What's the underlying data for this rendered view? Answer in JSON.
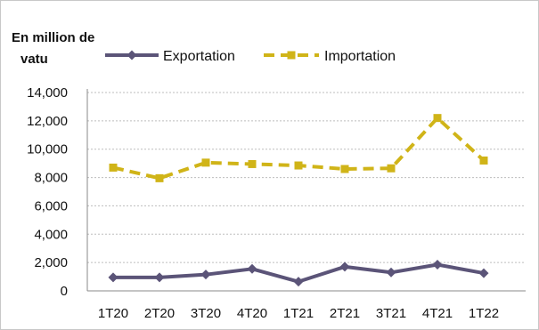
{
  "chart_data": {
    "type": "line",
    "ylabel_line1": "En million de",
    "ylabel_line2": "vatu",
    "categories": [
      "1T20",
      "2T20",
      "3T20",
      "4T20",
      "1T21",
      "2T21",
      "3T21",
      "4T21",
      "1T22"
    ],
    "ylim": [
      0,
      14000
    ],
    "yticks": [
      "0",
      "2,000",
      "4,000",
      "6,000",
      "8,000",
      "10,000",
      "12,000",
      "14,000"
    ],
    "grid": true,
    "legend_position": "top",
    "series": [
      {
        "name": "Exportation",
        "color": "#5b5478",
        "marker": "diamond",
        "dash": "solid",
        "values": [
          950,
          950,
          1150,
          1550,
          650,
          1700,
          1300,
          1850,
          1250
        ]
      },
      {
        "name": "Importation",
        "color": "#d0b418",
        "marker": "square",
        "dash": "dashed",
        "values": [
          8700,
          7950,
          9050,
          8950,
          8850,
          8600,
          8650,
          12200,
          9200
        ]
      }
    ]
  }
}
